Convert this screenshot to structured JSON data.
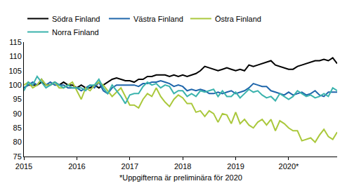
{
  "chart_data": {
    "type": "line",
    "categories": [
      "2015",
      null,
      null,
      null,
      null,
      null,
      null,
      null,
      null,
      null,
      null,
      null,
      "2016",
      null,
      null,
      null,
      null,
      null,
      null,
      null,
      null,
      null,
      null,
      null,
      "2017",
      null,
      null,
      null,
      null,
      null,
      null,
      null,
      null,
      null,
      null,
      null,
      "2018",
      null,
      null,
      null,
      null,
      null,
      null,
      null,
      null,
      null,
      null,
      null,
      "2019",
      null,
      null,
      null,
      null,
      null,
      null,
      null,
      null,
      null,
      null,
      null,
      "2020*",
      null,
      null,
      null,
      null,
      null,
      null,
      null,
      null,
      null,
      null,
      null
    ],
    "series": [
      {
        "name": "Södra Finland",
        "color": "#000000",
        "values": [
          99,
          100,
          100,
          100,
          101,
          100,
          100,
          101,
          100,
          101,
          100,
          100,
          99,
          100,
          99,
          99,
          100,
          99,
          100,
          101,
          102,
          102.5,
          102,
          101.5,
          101.5,
          101,
          102,
          102,
          103,
          103,
          103.5,
          103.5,
          103.5,
          103,
          103.5,
          103,
          103.5,
          103,
          103.5,
          104,
          105,
          106.5,
          106,
          105.5,
          105,
          105.5,
          106,
          105.5,
          105,
          105.5,
          105,
          107,
          106.5,
          107,
          107.5,
          108,
          108.5,
          107,
          106.5,
          106,
          105.5,
          105.5,
          106.5,
          107,
          107.5,
          108,
          108.5,
          108.5,
          109,
          108.5,
          109.5,
          107.5
        ]
      },
      {
        "name": "Västra Finland",
        "color": "#1f66ab",
        "values": [
          99,
          100,
          101,
          100,
          102,
          100,
          101,
          100,
          100,
          100,
          99,
          99,
          99,
          98,
          99,
          100,
          99,
          101,
          98,
          97,
          99,
          100,
          100,
          100,
          100,
          100,
          99.5,
          100.5,
          100.5,
          101,
          101,
          101.5,
          101,
          100.5,
          99.5,
          100,
          99.5,
          98,
          98.5,
          98,
          98.5,
          98,
          97,
          97,
          97.5,
          97,
          97.5,
          98,
          97,
          97.5,
          98,
          99,
          100.5,
          100,
          99.5,
          99.5,
          98,
          97.5,
          97,
          96.5,
          97.5,
          96.5,
          97,
          97.5,
          96.5,
          97,
          98,
          96.5,
          96,
          97.5,
          97.5,
          97.5
        ]
      },
      {
        "name": "Östra Finland",
        "color": "#aac83c",
        "values": [
          100,
          101,
          99,
          100,
          102,
          100,
          100,
          101,
          99,
          99,
          100,
          101,
          98,
          95,
          99,
          98,
          100,
          101,
          100,
          98,
          96,
          97.5,
          99,
          96,
          93,
          93,
          92,
          95,
          97,
          96,
          99,
          96,
          94,
          92.5,
          95,
          96.5,
          95.5,
          93.5,
          93.5,
          90.5,
          91,
          89,
          91,
          90,
          87,
          90,
          89.5,
          86.5,
          90.5,
          86.5,
          88,
          86,
          85,
          87,
          88,
          86,
          88,
          84,
          87.5,
          86.5,
          85,
          84,
          84,
          80.5,
          81,
          81.5,
          80,
          82.5,
          84.5,
          82,
          81,
          83.5
        ]
      },
      {
        "name": "Norra Finland",
        "color": "#3bb3ad",
        "values": [
          98,
          101,
          100,
          103,
          101,
          99,
          100,
          101,
          100,
          99,
          100,
          99,
          99,
          99,
          98,
          100,
          100,
          102,
          99,
          97,
          100,
          98,
          96,
          93.5,
          96.5,
          97,
          97,
          99.5,
          101,
          100,
          100.5,
          99,
          100,
          99.5,
          97,
          98,
          98,
          96,
          97,
          96,
          98,
          97.5,
          98,
          98.5,
          96,
          98,
          96,
          96,
          97.5,
          95.5,
          97,
          98.5,
          97.5,
          98,
          96.5,
          95.5,
          96,
          94.5,
          97,
          96,
          95,
          96,
          98,
          97,
          96,
          96.5,
          95.5,
          96,
          97,
          96,
          99,
          98
        ]
      }
    ],
    "ylim": [
      75,
      115
    ],
    "yticks": [
      75,
      80,
      85,
      90,
      95,
      100,
      105,
      110,
      115
    ],
    "grid": false,
    "legend": "top",
    "annotations": [
      "*Uppgifterna är preliminära för 2020"
    ]
  }
}
